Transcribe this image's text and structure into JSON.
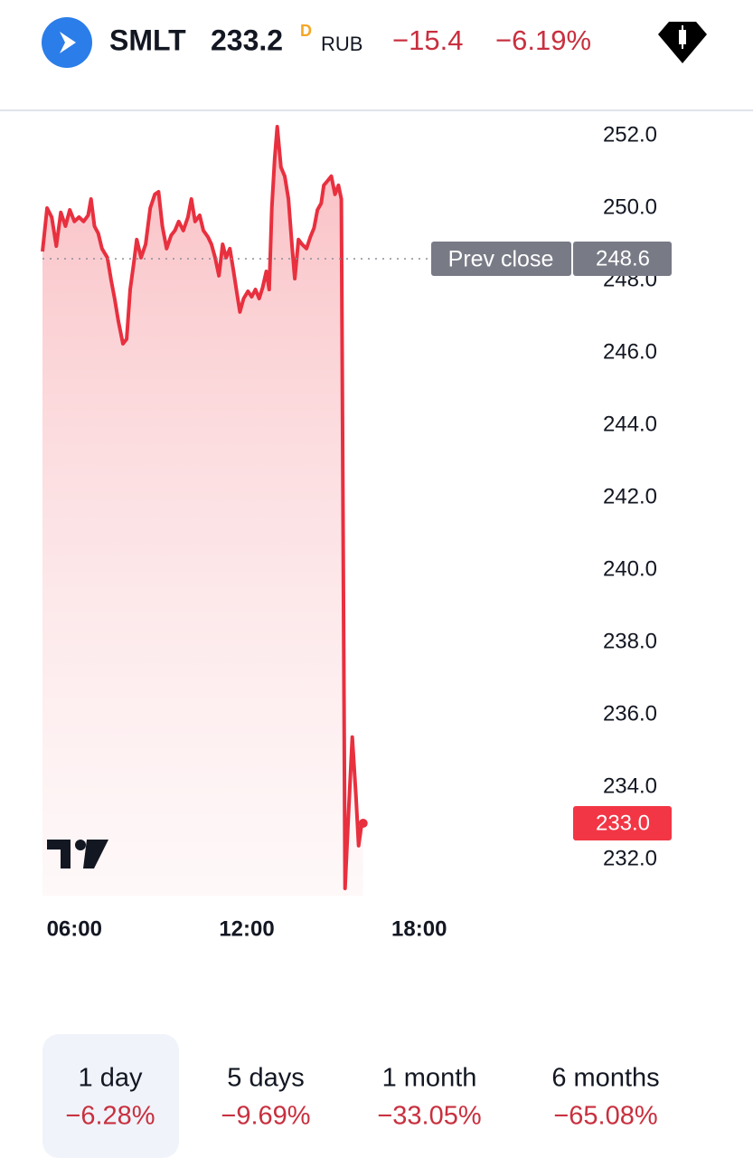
{
  "header": {
    "symbol": "SMLT",
    "price": "233.2",
    "price_flag": "D",
    "currency": "RUB",
    "change": "−15.4",
    "change_pct": "−6.19%"
  },
  "chart_data": {
    "type": "line",
    "color": "#e8303f",
    "x": [
      4.89,
      5.05,
      5.21,
      5.37,
      5.53,
      5.69,
      5.84,
      6.0,
      6.16,
      6.32,
      6.48,
      6.58,
      6.7,
      6.83,
      6.96,
      7.15,
      7.28,
      7.4,
      7.53,
      7.69,
      7.82,
      7.94,
      8.07,
      8.17,
      8.32,
      8.48,
      8.64,
      8.8,
      8.93,
      9.06,
      9.21,
      9.37,
      9.5,
      9.63,
      9.79,
      9.95,
      10.07,
      10.2,
      10.36,
      10.49,
      10.65,
      10.77,
      10.9,
      11.03,
      11.16,
      11.28,
      11.41,
      11.54,
      11.66,
      11.76,
      11.89,
      12.04,
      12.17,
      12.3,
      12.43,
      12.55,
      12.68,
      12.78,
      12.87,
      12.97,
      13.06,
      13.19,
      13.32,
      13.45,
      13.57,
      13.67,
      13.8,
      13.92,
      14.08,
      14.21,
      14.34,
      14.46,
      14.59,
      14.68,
      14.81,
      14.94,
      15.07,
      15.19,
      15.29,
      15.42,
      15.54,
      15.67,
      15.8,
      15.89,
      15.99,
      16.05
    ],
    "values": [
      248.8,
      250.0,
      249.75,
      248.95,
      249.88,
      249.5,
      249.95,
      249.63,
      249.75,
      249.63,
      249.8,
      250.25,
      249.5,
      249.3,
      248.88,
      248.63,
      248.0,
      247.5,
      246.88,
      246.25,
      246.38,
      247.75,
      248.5,
      249.13,
      248.63,
      249.0,
      250.0,
      250.38,
      250.45,
      249.5,
      248.88,
      249.25,
      249.38,
      249.63,
      249.38,
      249.75,
      250.25,
      249.63,
      249.8,
      249.38,
      249.2,
      249.0,
      248.63,
      248.13,
      249.0,
      248.63,
      248.88,
      248.25,
      247.63,
      247.13,
      247.5,
      247.7,
      247.55,
      247.75,
      247.5,
      247.8,
      248.25,
      247.75,
      250.0,
      251.38,
      252.25,
      251.13,
      250.88,
      250.25,
      249.0,
      248.05,
      249.13,
      249.0,
      248.88,
      249.2,
      249.45,
      249.95,
      250.13,
      250.63,
      250.75,
      250.88,
      250.38,
      250.63,
      250.25,
      231.2,
      233.25,
      235.38,
      233.75,
      232.38,
      232.95,
      233.0
    ],
    "xlim": [
      4.89,
      18.7
    ],
    "xticks": [
      {
        "value": 6,
        "label": "06:00"
      },
      {
        "value": 12,
        "label": "12:00"
      },
      {
        "value": 18,
        "label": "18:00"
      }
    ],
    "ylim": [
      231,
      252.6
    ],
    "yticks": [
      {
        "value": 232,
        "label": "232.0"
      },
      {
        "value": 234,
        "label": "234.0"
      },
      {
        "value": 236,
        "label": "236.0"
      },
      {
        "value": 238,
        "label": "238.0"
      },
      {
        "value": 240,
        "label": "240.0"
      },
      {
        "value": 242,
        "label": "242.0"
      },
      {
        "value": 244,
        "label": "244.0"
      },
      {
        "value": 246,
        "label": "246.0"
      },
      {
        "value": 248,
        "label": "248.0"
      },
      {
        "value": 250,
        "label": "250.0"
      },
      {
        "value": 252,
        "label": "252.0"
      }
    ],
    "prev_close": {
      "label": "Prev close",
      "value": 248.6
    },
    "last_value": {
      "value": 233,
      "label": "233.0"
    }
  },
  "periods": [
    {
      "label": "1 day",
      "change": "−6.28%"
    },
    {
      "label": "5 days",
      "change": "−9.69%"
    },
    {
      "label": "1 month",
      "change": "−33.05%"
    },
    {
      "label": "6 months",
      "change": "−65.08%"
    }
  ]
}
